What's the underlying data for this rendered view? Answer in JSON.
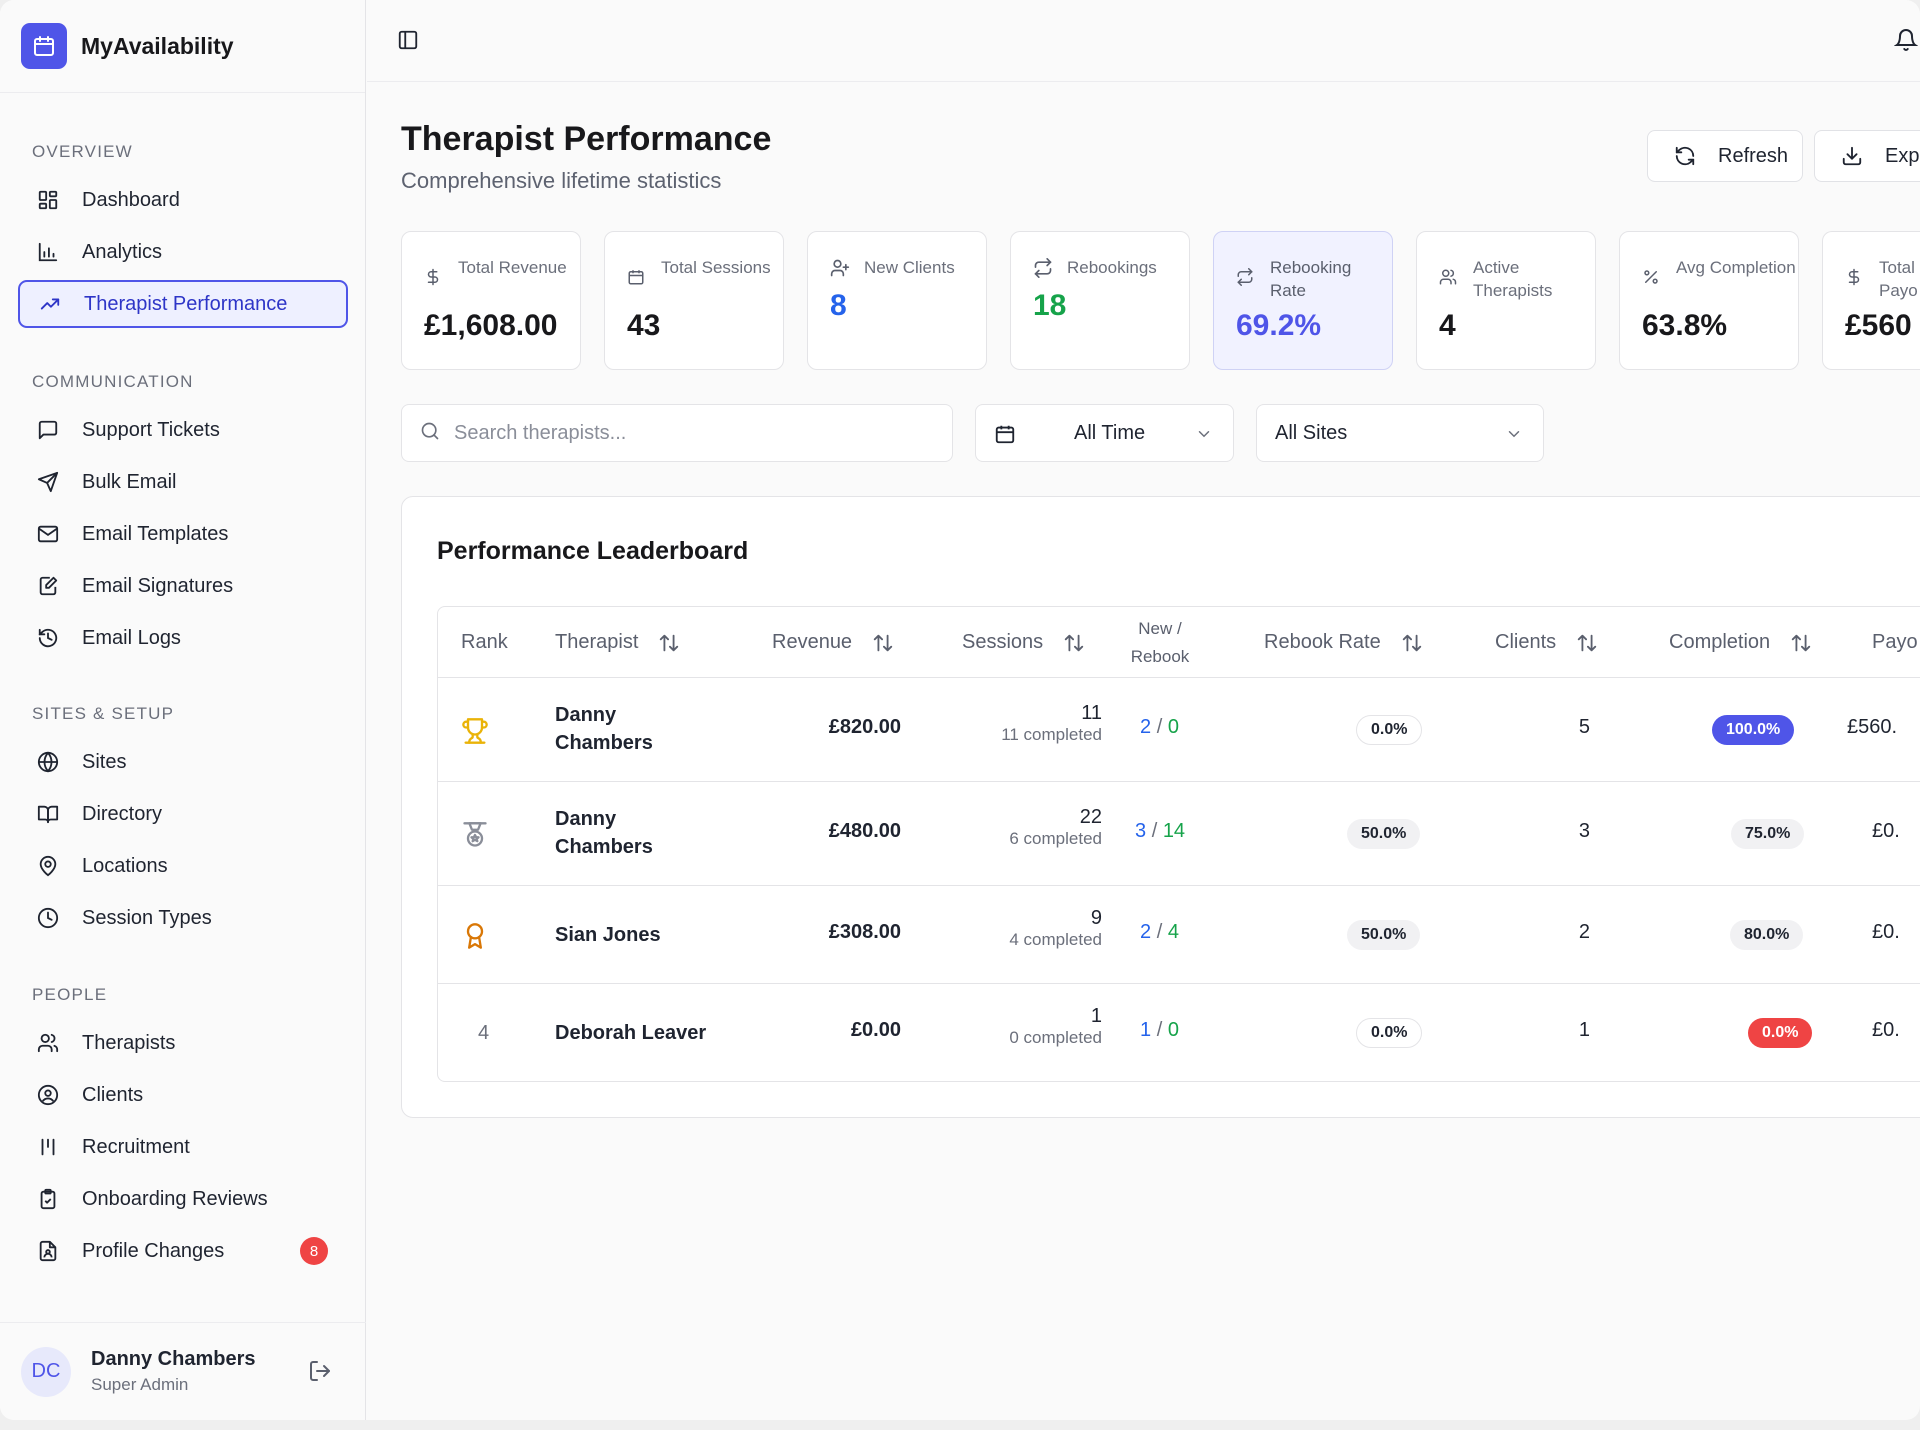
{
  "brand": {
    "name": "MyAvailability"
  },
  "nav": {
    "sections": [
      {
        "title": "OVERVIEW",
        "items": [
          {
            "label": "Dashboard",
            "icon": "dashboard-icon"
          },
          {
            "label": "Analytics",
            "icon": "bar-chart-icon"
          },
          {
            "label": "Therapist Performance",
            "icon": "trending-up-icon",
            "active": true
          }
        ]
      },
      {
        "title": "COMMUNICATION",
        "items": [
          {
            "label": "Support Tickets",
            "icon": "message-square-icon"
          },
          {
            "label": "Bulk Email",
            "icon": "send-icon"
          },
          {
            "label": "Email Templates",
            "icon": "mail-icon"
          },
          {
            "label": "Email Signatures",
            "icon": "file-signature-icon"
          },
          {
            "label": "Email Logs",
            "icon": "history-icon"
          }
        ]
      },
      {
        "title": "SITES & SETUP",
        "items": [
          {
            "label": "Sites",
            "icon": "globe-icon"
          },
          {
            "label": "Directory",
            "icon": "book-open-icon"
          },
          {
            "label": "Locations",
            "icon": "map-pin-icon"
          },
          {
            "label": "Session Types",
            "icon": "clock-icon"
          }
        ]
      },
      {
        "title": "PEOPLE",
        "items": [
          {
            "label": "Therapists",
            "icon": "users-icon"
          },
          {
            "label": "Clients",
            "icon": "user-circle-icon"
          },
          {
            "label": "Recruitment",
            "icon": "recruitment-icon"
          },
          {
            "label": "Onboarding Reviews",
            "icon": "clipboard-check-icon"
          },
          {
            "label": "Profile Changes",
            "icon": "file-user-icon",
            "badge": "8"
          }
        ]
      }
    ]
  },
  "user": {
    "initials": "DC",
    "name": "Danny Chambers",
    "role": "Super Admin"
  },
  "header": {
    "title": "Therapist Performance",
    "subtitle": "Comprehensive lifetime statistics",
    "refresh_label": "Refresh",
    "export_label": "Expo"
  },
  "stats": [
    {
      "label": "Total Revenue",
      "value": "£1,608.00",
      "icon": "dollar-icon"
    },
    {
      "label": "Total Sessions",
      "value": "43",
      "icon": "calendar-icon"
    },
    {
      "label": "New Clients",
      "value": "8",
      "icon": "user-plus-icon",
      "color": "#2563eb"
    },
    {
      "label": "Rebookings",
      "value": "18",
      "icon": "repeat-icon",
      "color": "#16a34a"
    },
    {
      "label": "Rebooking Rate",
      "value": "69.2%",
      "icon": "repeat-icon",
      "color": "#4f55e8",
      "highlight": true
    },
    {
      "label": "Active Therapists",
      "value": "4",
      "icon": "users-icon"
    },
    {
      "label": "Avg Completion",
      "value": "63.8%",
      "icon": "percent-icon"
    },
    {
      "label": "Total Payo",
      "value": "£560",
      "icon": "dollar-icon"
    }
  ],
  "filters": {
    "search_placeholder": "Search therapists...",
    "time_value": "All Time",
    "sites_value": "All Sites"
  },
  "leaderboard": {
    "title": "Performance Leaderboard",
    "columns": {
      "rank": "Rank",
      "therapist": "Therapist",
      "revenue": "Revenue",
      "sessions": "Sessions",
      "new_rebook_1": "New /",
      "new_rebook_2": "Rebook",
      "rebook_rate": "Rebook Rate",
      "clients": "Clients",
      "completion": "Completion",
      "payout": "Payo"
    },
    "rows": [
      {
        "rank_icon": "trophy-icon",
        "name_1": "Danny",
        "name_2": "Chambers",
        "revenue": "£820.00",
        "sessions": "11",
        "completed": "11 completed",
        "new": "2",
        "rebook": "0",
        "rebook_rate": "0.0%",
        "clients": "5",
        "completion": "100.0%",
        "payout": "£560."
      },
      {
        "rank_icon": "medal-icon",
        "name_1": "Danny",
        "name_2": "Chambers",
        "revenue": "£480.00",
        "sessions": "22",
        "completed": "6 completed",
        "new": "3",
        "rebook": "14",
        "rebook_rate": "50.0%",
        "clients": "3",
        "completion": "75.0%",
        "payout": "£0."
      },
      {
        "rank_icon": "award-icon",
        "name_1": "Sian Jones",
        "name_2": "",
        "revenue": "£308.00",
        "sessions": "9",
        "completed": "4 completed",
        "new": "2",
        "rebook": "4",
        "rebook_rate": "50.0%",
        "clients": "2",
        "completion": "80.0%",
        "payout": "£0."
      },
      {
        "rank": "4",
        "name_1": "Deborah Leaver",
        "name_2": "",
        "revenue": "£0.00",
        "sessions": "1",
        "completed": "0 completed",
        "new": "1",
        "rebook": "0",
        "rebook_rate": "0.0%",
        "clients": "1",
        "completion": "0.0%",
        "payout": "£0."
      }
    ],
    "slash": "/"
  },
  "colors": {
    "accent": "#4f55e8",
    "green": "#16a34a",
    "blue": "#2563eb",
    "red": "#ef4444",
    "gold": "#eab308",
    "bronze": "#d97706"
  }
}
